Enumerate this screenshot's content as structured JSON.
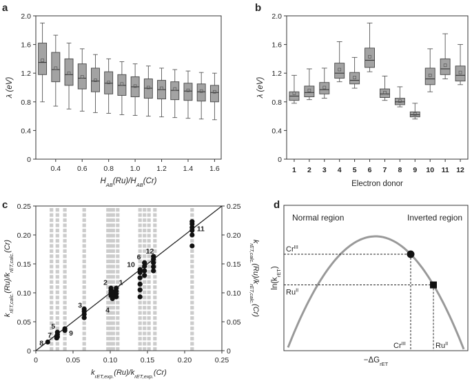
{
  "panels": {
    "a": "a",
    "b": "b",
    "c": "c",
    "d": "d"
  },
  "chart_data": [
    {
      "panel": "a",
      "type": "box",
      "xlabel": "H_AB(Ru)/H_AB(Cr)",
      "ylabel": "λ (eV)",
      "xlim": [
        0.25,
        1.65
      ],
      "ylim": [
        0,
        2.0
      ],
      "xticks": [
        "0.4",
        "0.6",
        "0.8",
        "1.0",
        "1.2",
        "1.4",
        "1.6"
      ],
      "yticks": [
        "0",
        "0.4",
        "0.8",
        "1.2",
        "1.6",
        "2.0"
      ],
      "x": [
        0.3,
        0.4,
        0.5,
        0.6,
        0.7,
        0.8,
        0.9,
        1.0,
        1.1,
        1.2,
        1.3,
        1.4,
        1.5,
        1.6
      ],
      "whisker_low": [
        0.8,
        0.74,
        0.7,
        0.67,
        0.65,
        0.64,
        0.62,
        0.61,
        0.6,
        0.59,
        0.58,
        0.57,
        0.56,
        0.55
      ],
      "q1": [
        1.18,
        1.08,
        1.03,
        0.98,
        0.94,
        0.91,
        0.89,
        0.87,
        0.85,
        0.84,
        0.83,
        0.82,
        0.81,
        0.8
      ],
      "median": [
        1.35,
        1.25,
        1.18,
        1.13,
        1.09,
        1.06,
        1.03,
        1.01,
        0.99,
        0.97,
        0.96,
        0.95,
        0.94,
        0.93
      ],
      "q3": [
        1.62,
        1.49,
        1.4,
        1.33,
        1.27,
        1.22,
        1.18,
        1.15,
        1.12,
        1.1,
        1.08,
        1.06,
        1.05,
        1.03
      ],
      "whisker_high": [
        1.9,
        1.73,
        1.62,
        1.54,
        1.46,
        1.4,
        1.36,
        1.33,
        1.3,
        1.27,
        1.25,
        1.23,
        1.21,
        1.2
      ],
      "mean": [
        1.38,
        1.27,
        1.2,
        1.15,
        1.1,
        1.07,
        1.05,
        1.02,
        1.0,
        0.99,
        0.98,
        0.96,
        0.95,
        0.94
      ]
    },
    {
      "panel": "b",
      "type": "box",
      "xlabel": "Electron donor",
      "ylabel": "λ (eV)",
      "ylim": [
        0,
        2.0
      ],
      "yticks": [
        "0",
        "0.4",
        "0.8",
        "1.2",
        "1.6",
        "2.0"
      ],
      "categories": [
        "1",
        "2",
        "3",
        "4",
        "5",
        "6",
        "7",
        "8",
        "9",
        "10",
        "11",
        "12"
      ],
      "whisker_low": [
        0.78,
        0.83,
        0.85,
        1.08,
        0.99,
        1.22,
        0.82,
        0.73,
        0.56,
        0.94,
        1.12,
        1.04
      ],
      "q1": [
        0.82,
        0.87,
        0.91,
        1.13,
        1.05,
        1.28,
        0.86,
        0.76,
        0.59,
        1.04,
        1.18,
        1.09
      ],
      "median": [
        0.88,
        0.93,
        0.97,
        1.2,
        1.1,
        1.38,
        0.91,
        0.8,
        0.62,
        1.12,
        1.26,
        1.17
      ],
      "q3": [
        0.94,
        1.02,
        1.07,
        1.34,
        1.21,
        1.55,
        0.98,
        0.85,
        0.66,
        1.27,
        1.4,
        1.3
      ],
      "whisker_high": [
        1.17,
        1.26,
        1.27,
        1.64,
        1.42,
        1.9,
        1.16,
        1.01,
        0.78,
        1.54,
        1.75,
        1.6
      ],
      "mean": [
        0.92,
        0.96,
        1.0,
        1.25,
        1.14,
        1.43,
        0.93,
        0.81,
        0.63,
        1.17,
        1.31,
        1.21
      ]
    },
    {
      "panel": "c",
      "type": "scatter",
      "xlabel": "k_rET,exp.(Ru)/k_rET,exp.(Cr)",
      "ylabel": "k_rET,calc.(Ru)/k_rET,calc.(Cr)",
      "ylabel_right": "k_rET,calc.(Ru)/k_rET,calc.(Cr)",
      "xlim": [
        0,
        0.25
      ],
      "ylim": [
        0,
        0.25
      ],
      "xticks": [
        "0",
        "0.05",
        "0.10",
        "0.15",
        "0.20",
        "0.25"
      ],
      "yticks": [
        "0",
        "0.05",
        "0.10",
        "0.15",
        "0.20",
        "0.25"
      ],
      "diagonal": [
        [
          0,
          0
        ],
        [
          0.25,
          0.25
        ]
      ],
      "background_columns_x": [
        0.021,
        0.029,
        0.039,
        0.065,
        0.097,
        0.1,
        0.104,
        0.11,
        0.14,
        0.146,
        0.152,
        0.16,
        0.21
      ],
      "points": [
        {
          "label": "1",
          "x": 0.108,
          "y": [
            0.093,
            0.098,
            0.103,
            0.108
          ]
        },
        {
          "label": "2",
          "x": 0.101,
          "y": [
            0.095,
            0.1,
            0.104,
            0.108
          ]
        },
        {
          "label": "3",
          "x": 0.065,
          "y": [
            0.057,
            0.063,
            0.068,
            0.072
          ]
        },
        {
          "label": "4",
          "x": 0.103,
          "y": [
            0.09,
            0.094,
            0.098,
            0.102
          ]
        },
        {
          "label": "5",
          "x": 0.029,
          "y": [
            0.024,
            0.028,
            0.032
          ]
        },
        {
          "label": "6",
          "x": 0.146,
          "y": [
            0.13,
            0.138,
            0.146,
            0.152
          ]
        },
        {
          "label": "7",
          "x": 0.028,
          "y": [
            0.022,
            0.025
          ]
        },
        {
          "label": "8",
          "x": 0.016,
          "y": [
            0.015
          ]
        },
        {
          "label": "9",
          "x": 0.039,
          "y": [
            0.035,
            0.038
          ]
        },
        {
          "label": "10",
          "x": 0.14,
          "y": [
            0.093,
            0.105,
            0.115,
            0.126,
            0.135,
            0.14
          ]
        },
        {
          "label": "11",
          "x": 0.21,
          "y": [
            0.181,
            0.2,
            0.208,
            0.213,
            0.219,
            0.223
          ]
        },
        {
          "label": "12",
          "x": 0.158,
          "y": [
            0.138,
            0.145,
            0.152,
            0.158,
            0.163
          ]
        }
      ]
    },
    {
      "panel": "d",
      "type": "schematic",
      "xlabel": "−ΔG_rET",
      "ylabel": "ln(k_rET)",
      "region_left": "Normal region",
      "region_right": "Inverted region",
      "cr_label": "Cr",
      "cr_sup": "III",
      "ru_label": "Ru",
      "ru_sup": "II"
    }
  ]
}
